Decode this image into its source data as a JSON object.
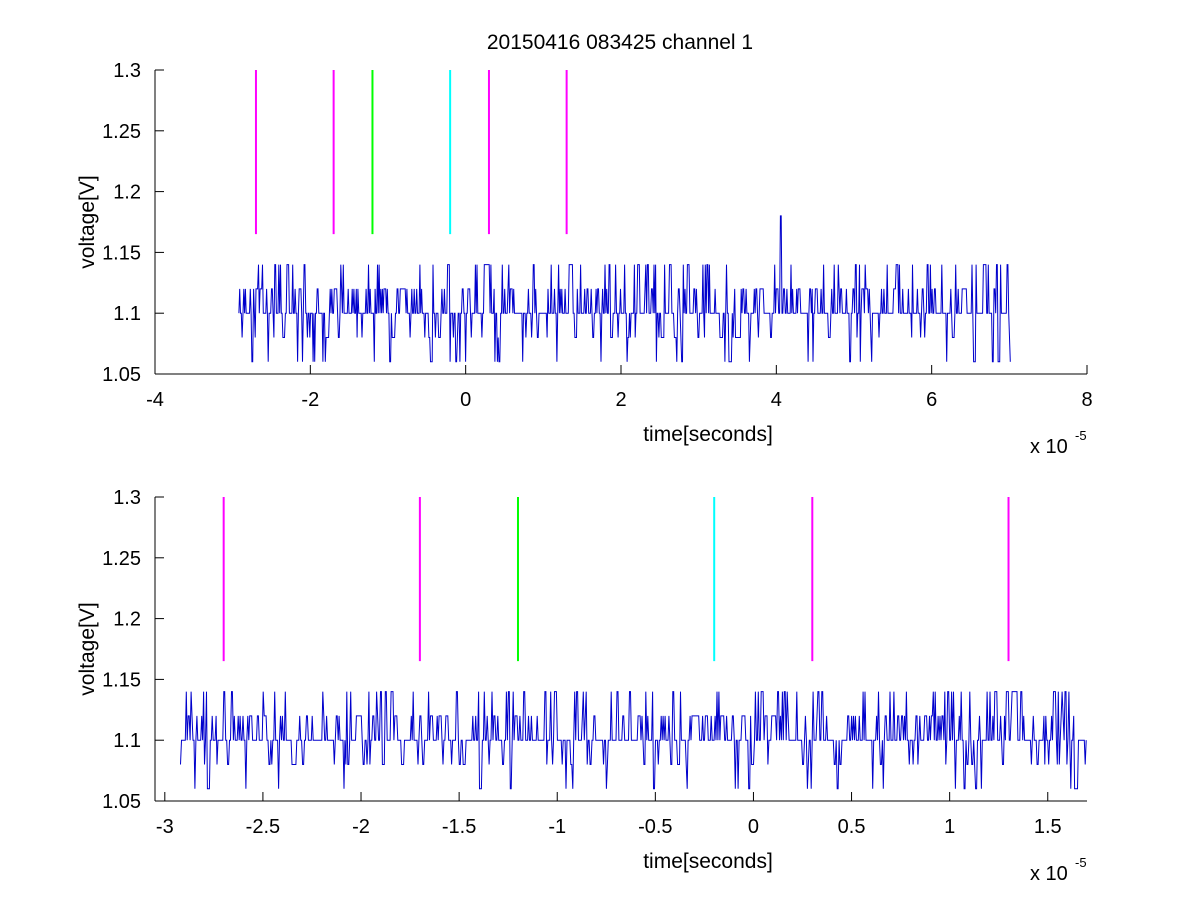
{
  "figure": {
    "title": "20150416 083425 channel 1"
  },
  "colors": {
    "signal": "#0000cc",
    "magenta": "#ff00ff",
    "green": "#00ff00",
    "cyan": "#00ffff",
    "axis": "#000000"
  },
  "chart_data": [
    {
      "type": "line",
      "title": "20150416 083425 channel 1",
      "xlabel": "time[seconds]",
      "ylabel": "voltage[V]",
      "x_multiplier": "x 10",
      "x_multiplier_exp": "-5",
      "xlim": [
        -4,
        8
      ],
      "ylim": [
        1.05,
        1.3
      ],
      "xticks": [
        -4,
        -2,
        0,
        2,
        4,
        6,
        8
      ],
      "xtick_labels": [
        "-4",
        "-2",
        "0",
        "2",
        "4",
        "6",
        "8"
      ],
      "yticks": [
        1.05,
        1.1,
        1.15,
        1.2,
        1.25,
        1.3
      ],
      "ytick_labels": [
        "1.05",
        "1.1",
        "1.15",
        "1.2",
        "1.25",
        "1.3"
      ],
      "grid": false,
      "series": [
        {
          "color": "#0000cc",
          "x_range": [
            -2.92,
            7.02
          ],
          "levels": [
            1.06,
            1.08,
            1.1,
            1.12,
            1.14
          ],
          "baseline": 1.1,
          "spike": {
            "x": 4.05,
            "y": 1.18
          }
        }
      ],
      "markers": [
        {
          "x": -2.7,
          "y_range": [
            1.165,
            1.3
          ],
          "color": "#ff00ff"
        },
        {
          "x": -1.7,
          "y_range": [
            1.165,
            1.3
          ],
          "color": "#ff00ff"
        },
        {
          "x": -1.2,
          "y_range": [
            1.165,
            1.3
          ],
          "color": "#00ff00"
        },
        {
          "x": -0.2,
          "y_range": [
            1.165,
            1.3
          ],
          "color": "#00ffff"
        },
        {
          "x": 0.3,
          "y_range": [
            1.165,
            1.3
          ],
          "color": "#ff00ff"
        },
        {
          "x": 1.3,
          "y_range": [
            1.165,
            1.3
          ],
          "color": "#ff00ff"
        }
      ]
    },
    {
      "type": "line",
      "title": "",
      "xlabel": "time[seconds]",
      "ylabel": "voltage[V]",
      "x_multiplier": "x 10",
      "x_multiplier_exp": "-5",
      "xlim": [
        -3.05,
        1.7
      ],
      "ylim": [
        1.05,
        1.3
      ],
      "xticks": [
        -3,
        -2.5,
        -2,
        -1.5,
        -1,
        -0.5,
        0,
        0.5,
        1,
        1.5
      ],
      "xtick_labels": [
        "-3",
        "-2.5",
        "-2",
        "-1.5",
        "-1",
        "-0.5",
        "0",
        "0.5",
        "1",
        "1.5"
      ],
      "yticks": [
        1.05,
        1.1,
        1.15,
        1.2,
        1.25,
        1.3
      ],
      "ytick_labels": [
        "1.05",
        "1.1",
        "1.15",
        "1.2",
        "1.25",
        "1.3"
      ],
      "grid": false,
      "series": [
        {
          "color": "#0000cc",
          "x_range": [
            -2.92,
            1.7
          ],
          "levels": [
            1.06,
            1.08,
            1.1,
            1.12,
            1.14
          ],
          "baseline": 1.1
        }
      ],
      "markers": [
        {
          "x": -2.7,
          "y_range": [
            1.165,
            1.3
          ],
          "color": "#ff00ff"
        },
        {
          "x": -1.7,
          "y_range": [
            1.165,
            1.3
          ],
          "color": "#ff00ff"
        },
        {
          "x": -1.2,
          "y_range": [
            1.165,
            1.3
          ],
          "color": "#00ff00"
        },
        {
          "x": -0.2,
          "y_range": [
            1.165,
            1.3
          ],
          "color": "#00ffff"
        },
        {
          "x": 0.3,
          "y_range": [
            1.165,
            1.3
          ],
          "color": "#ff00ff"
        },
        {
          "x": 1.3,
          "y_range": [
            1.165,
            1.3
          ],
          "color": "#ff00ff"
        }
      ]
    }
  ]
}
